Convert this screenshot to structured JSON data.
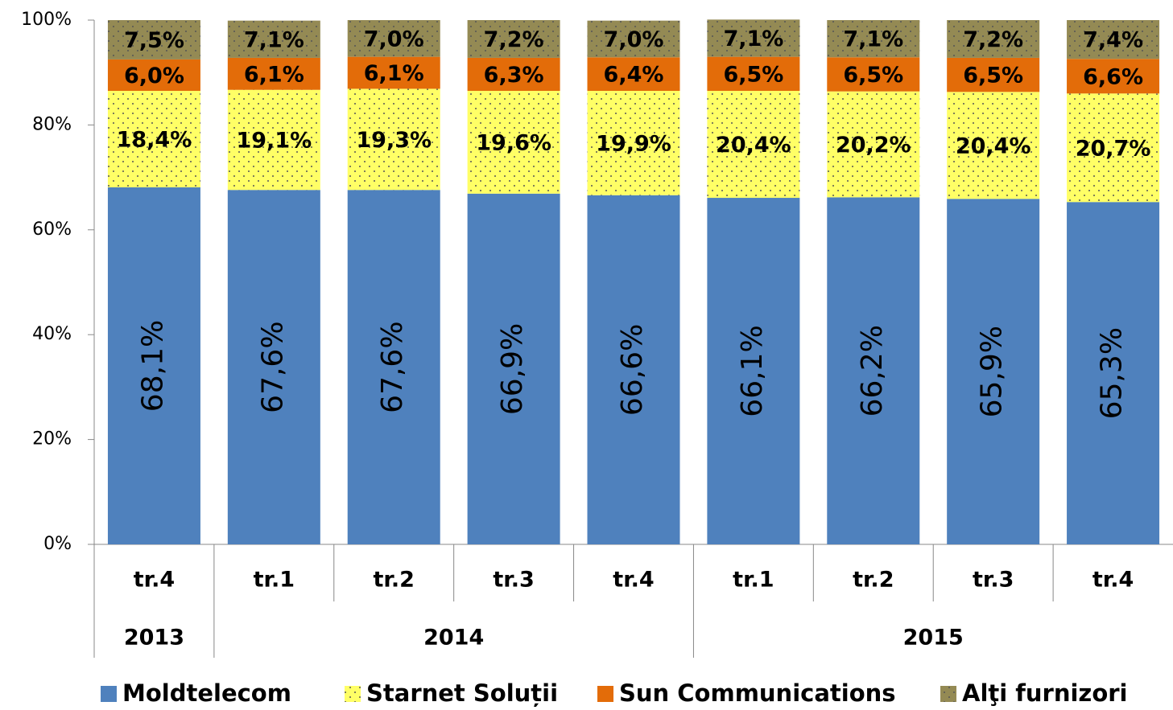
{
  "chart_data": {
    "type": "stacked_bar",
    "groups": [
      {
        "name": "2013",
        "categories": [
          "tr.4"
        ]
      },
      {
        "name": "2014",
        "categories": [
          "tr.1",
          "tr.2",
          "tr.3",
          "tr.4"
        ]
      },
      {
        "name": "2015",
        "categories": [
          "tr.1",
          "tr.2",
          "tr.3",
          "tr.4"
        ]
      }
    ],
    "series": [
      {
        "name": "Moldtelecom",
        "color": "#4f81bd",
        "values": [
          68.1,
          67.6,
          67.6,
          66.9,
          66.6,
          66.1,
          66.2,
          65.9,
          65.3
        ],
        "value_labels": [
          "68,1%",
          "67,6%",
          "67,6%",
          "66,9%",
          "66,6%",
          "66,1%",
          "66,2%",
          "65,9%",
          "65,3%"
        ]
      },
      {
        "name": "Starnet Soluții",
        "color": "#ffff66",
        "pattern": "dotted",
        "values": [
          18.4,
          19.1,
          19.3,
          19.6,
          19.9,
          20.4,
          20.2,
          20.4,
          20.7
        ],
        "value_labels": [
          "18,4%",
          "19,1%",
          "19,3%",
          "19,6%",
          "19,9%",
          "20,4%",
          "20,2%",
          "20,4%",
          "20,7%"
        ]
      },
      {
        "name": "Sun Communications",
        "color": "#e36c09",
        "values": [
          6.0,
          6.1,
          6.1,
          6.3,
          6.4,
          6.5,
          6.5,
          6.5,
          6.6
        ],
        "value_labels": [
          "6,0%",
          "6,1%",
          "6,1%",
          "6,3%",
          "6,4%",
          "6,5%",
          "6,5%",
          "6,5%",
          "6,6%"
        ]
      },
      {
        "name": "Alţi furnizori",
        "color": "#948a54",
        "pattern": "dotted",
        "values": [
          7.5,
          7.1,
          7.0,
          7.2,
          7.0,
          7.1,
          7.1,
          7.2,
          7.4
        ],
        "value_labels": [
          "7,5%",
          "7,1%",
          "7,0%",
          "7,2%",
          "7,0%",
          "7,1%",
          "7,1%",
          "7,2%",
          "7,4%"
        ]
      }
    ],
    "ylim": [
      0,
      100
    ],
    "yticks": [
      {
        "value": 0,
        "label": "0%"
      },
      {
        "value": 20,
        "label": "20%"
      },
      {
        "value": 40,
        "label": "40%"
      },
      {
        "value": 60,
        "label": "60%"
      },
      {
        "value": 80,
        "label": "80%"
      },
      {
        "value": 100,
        "label": "100%"
      }
    ],
    "legend": "bottom"
  }
}
